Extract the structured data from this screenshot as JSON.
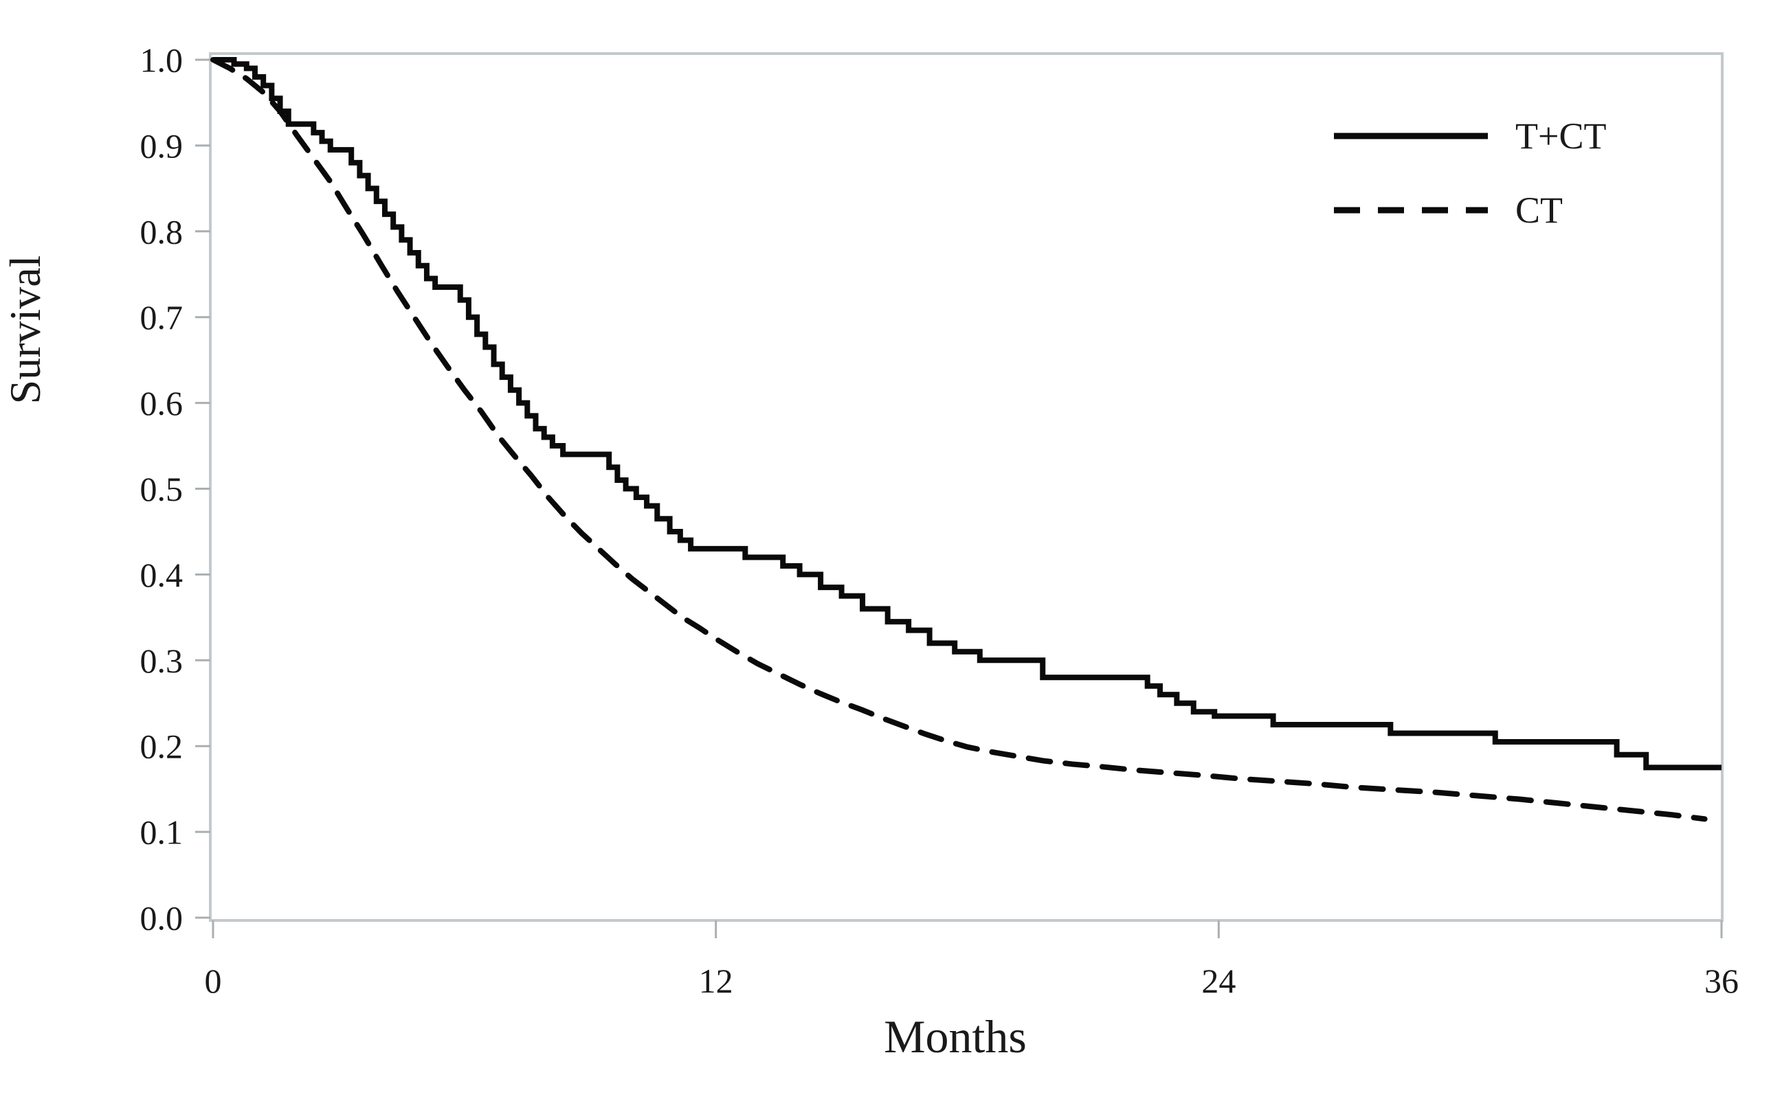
{
  "colors": {
    "curve": "#0a0a0a",
    "frame": "#c3c9cc",
    "tick": "#a9afb2",
    "text": "#1a1a1a",
    "background": "#ffffff"
  },
  "chart_data": {
    "type": "line",
    "subtype": "kaplan-meier-survival",
    "title": "",
    "xlabel": "Months",
    "ylabel": "Survival",
    "xlim": [
      0,
      36
    ],
    "ylim": [
      0.0,
      1.0
    ],
    "xticks": [
      0,
      12,
      24,
      36
    ],
    "xtick_labels": [
      "0",
      "12",
      "24",
      "36"
    ],
    "yticks": [
      1.0,
      0.9,
      0.8,
      0.7,
      0.6,
      0.5,
      0.4,
      0.3,
      0.2,
      0.1,
      0.0
    ],
    "ytick_labels": [
      "1.0",
      "0.9",
      "0.8",
      "0.7",
      "0.6",
      "0.5",
      "0.4",
      "0.3",
      "0.2",
      "0.1",
      "0.0"
    ],
    "grid": false,
    "legend_position": "top-right-inside",
    "series": [
      {
        "name": "T+CT",
        "line_style": "solid",
        "interpolation": "step-after",
        "points": [
          [
            0,
            1.0
          ],
          [
            0.5,
            0.995
          ],
          [
            0.8,
            0.99
          ],
          [
            1.0,
            0.98
          ],
          [
            1.2,
            0.97
          ],
          [
            1.4,
            0.955
          ],
          [
            1.6,
            0.94
          ],
          [
            1.8,
            0.925
          ],
          [
            2.4,
            0.915
          ],
          [
            2.6,
            0.905
          ],
          [
            2.8,
            0.895
          ],
          [
            3.3,
            0.88
          ],
          [
            3.5,
            0.865
          ],
          [
            3.7,
            0.85
          ],
          [
            3.9,
            0.835
          ],
          [
            4.1,
            0.82
          ],
          [
            4.3,
            0.805
          ],
          [
            4.5,
            0.79
          ],
          [
            4.7,
            0.775
          ],
          [
            4.9,
            0.76
          ],
          [
            5.1,
            0.745
          ],
          [
            5.3,
            0.735
          ],
          [
            5.9,
            0.72
          ],
          [
            6.1,
            0.7
          ],
          [
            6.3,
            0.68
          ],
          [
            6.5,
            0.665
          ],
          [
            6.7,
            0.645
          ],
          [
            6.9,
            0.63
          ],
          [
            7.1,
            0.615
          ],
          [
            7.3,
            0.6
          ],
          [
            7.5,
            0.585
          ],
          [
            7.7,
            0.57
          ],
          [
            7.9,
            0.56
          ],
          [
            8.1,
            0.55
          ],
          [
            8.35,
            0.54
          ],
          [
            9.45,
            0.525
          ],
          [
            9.65,
            0.51
          ],
          [
            9.85,
            0.5
          ],
          [
            10.1,
            0.49
          ],
          [
            10.35,
            0.48
          ],
          [
            10.6,
            0.465
          ],
          [
            10.9,
            0.45
          ],
          [
            11.15,
            0.44
          ],
          [
            11.4,
            0.43
          ],
          [
            12.7,
            0.42
          ],
          [
            13.6,
            0.41
          ],
          [
            14.0,
            0.4
          ],
          [
            14.5,
            0.385
          ],
          [
            15.0,
            0.375
          ],
          [
            15.5,
            0.36
          ],
          [
            16.1,
            0.345
          ],
          [
            16.6,
            0.335
          ],
          [
            17.1,
            0.32
          ],
          [
            17.7,
            0.31
          ],
          [
            18.3,
            0.3
          ],
          [
            19.8,
            0.28
          ],
          [
            22.3,
            0.27
          ],
          [
            22.6,
            0.26
          ],
          [
            23.0,
            0.25
          ],
          [
            23.4,
            0.24
          ],
          [
            23.9,
            0.235
          ],
          [
            25.3,
            0.225
          ],
          [
            28.1,
            0.215
          ],
          [
            30.6,
            0.205
          ],
          [
            33.5,
            0.19
          ],
          [
            34.2,
            0.175
          ],
          [
            36,
            0.175
          ]
        ]
      },
      {
        "name": "CT",
        "line_style": "dashed",
        "interpolation": "linear",
        "points": [
          [
            0,
            1.0
          ],
          [
            0.4,
            0.99
          ],
          [
            0.8,
            0.978
          ],
          [
            1.2,
            0.962
          ],
          [
            1.6,
            0.94
          ],
          [
            2.0,
            0.912
          ],
          [
            2.4,
            0.885
          ],
          [
            2.8,
            0.858
          ],
          [
            3.2,
            0.826
          ],
          [
            3.6,
            0.795
          ],
          [
            4.0,
            0.762
          ],
          [
            4.4,
            0.73
          ],
          [
            4.8,
            0.7
          ],
          [
            5.2,
            0.67
          ],
          [
            5.6,
            0.642
          ],
          [
            6.0,
            0.615
          ],
          [
            6.4,
            0.59
          ],
          [
            6.8,
            0.562
          ],
          [
            7.2,
            0.538
          ],
          [
            7.6,
            0.515
          ],
          [
            8.0,
            0.49
          ],
          [
            8.4,
            0.468
          ],
          [
            8.8,
            0.448
          ],
          [
            9.2,
            0.43
          ],
          [
            9.6,
            0.412
          ],
          [
            10.0,
            0.395
          ],
          [
            10.4,
            0.38
          ],
          [
            10.8,
            0.365
          ],
          [
            11.2,
            0.35
          ],
          [
            11.6,
            0.338
          ],
          [
            12.0,
            0.325
          ],
          [
            12.5,
            0.31
          ],
          [
            13.0,
            0.296
          ],
          [
            13.5,
            0.284
          ],
          [
            14.0,
            0.272
          ],
          [
            14.5,
            0.261
          ],
          [
            15.0,
            0.251
          ],
          [
            15.5,
            0.242
          ],
          [
            16.0,
            0.232
          ],
          [
            16.5,
            0.223
          ],
          [
            17.0,
            0.214
          ],
          [
            17.5,
            0.206
          ],
          [
            18.0,
            0.199
          ],
          [
            18.6,
            0.193
          ],
          [
            19.2,
            0.188
          ],
          [
            19.8,
            0.183
          ],
          [
            20.5,
            0.179
          ],
          [
            21.2,
            0.176
          ],
          [
            22.0,
            0.172
          ],
          [
            22.8,
            0.169
          ],
          [
            23.6,
            0.166
          ],
          [
            24.5,
            0.162
          ],
          [
            25.4,
            0.159
          ],
          [
            26.3,
            0.156
          ],
          [
            27.2,
            0.152
          ],
          [
            28.2,
            0.149
          ],
          [
            29.2,
            0.146
          ],
          [
            30.2,
            0.142
          ],
          [
            31.2,
            0.138
          ],
          [
            32.2,
            0.133
          ],
          [
            33.2,
            0.128
          ],
          [
            34.0,
            0.124
          ],
          [
            34.8,
            0.12
          ],
          [
            35.6,
            0.115
          ]
        ]
      }
    ]
  }
}
